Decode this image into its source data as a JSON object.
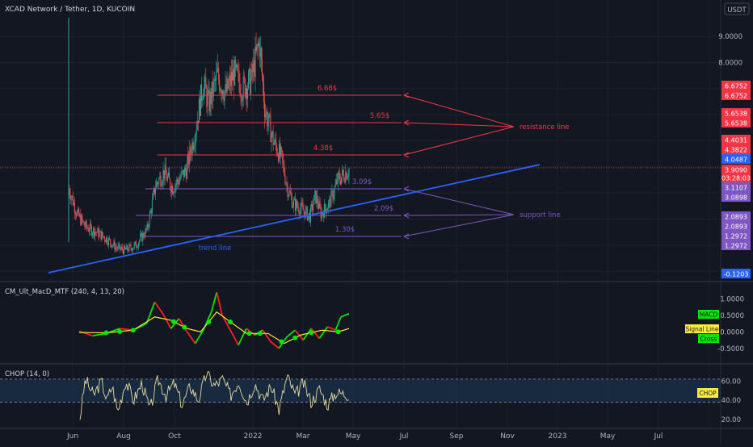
{
  "header": {
    "symbol_title": "XCAD Network / Tether, 1D, KUCOIN",
    "currency": "USDT"
  },
  "colors": {
    "background": "#131722",
    "grid": "#1e2230",
    "text": "#b2b5be",
    "candle_up": "#26a69a",
    "candle_down": "#ef5350",
    "resistance": "#f23645",
    "support": "#7e57c2",
    "trend": "#2962ff",
    "macd_up": "#00e600",
    "macd_down": "#ff1f1f",
    "signal": "#ffeb3b",
    "chop": "#e8d9a0"
  },
  "chart_data": [
    {
      "type": "candlestick",
      "title": "XCAD Network / Tether, 1D, KUCOIN",
      "x_ticks": [
        "Jun",
        "Aug",
        "Oct",
        "2022",
        "Mar",
        "May",
        "Jul",
        "Sep",
        "Nov",
        "2023",
        "May",
        "Jul"
      ],
      "y_ticks": [
        "9.0000",
        "8.0000",
        "-0.1203"
      ],
      "y_range_price": [
        -0.12,
        9.1
      ],
      "price_path": [
        [
          0,
          3.2
        ],
        [
          0.03,
          2.2
        ],
        [
          0.06,
          1.7
        ],
        [
          0.1,
          1.5
        ],
        [
          0.14,
          1.2
        ],
        [
          0.17,
          0.9
        ],
        [
          0.2,
          0.8
        ],
        [
          0.24,
          1.0
        ],
        [
          0.28,
          1.6
        ],
        [
          0.31,
          3.3
        ],
        [
          0.34,
          3.8
        ],
        [
          0.37,
          3.2
        ],
        [
          0.4,
          3.6
        ],
        [
          0.42,
          3.9
        ],
        [
          0.45,
          5.3
        ],
        [
          0.48,
          7.2
        ],
        [
          0.5,
          6.4
        ],
        [
          0.53,
          7.5
        ],
        [
          0.56,
          6.8
        ],
        [
          0.59,
          7.6
        ],
        [
          0.62,
          7.0
        ],
        [
          0.65,
          7.3
        ],
        [
          0.68,
          8.8
        ],
        [
          0.7,
          6.2
        ],
        [
          0.73,
          5.0
        ],
        [
          0.76,
          4.3
        ],
        [
          0.78,
          3.2
        ],
        [
          0.8,
          2.6
        ],
        [
          0.83,
          2.4
        ],
        [
          0.86,
          2.1
        ],
        [
          0.88,
          2.9
        ],
        [
          0.9,
          2.2
        ],
        [
          0.93,
          2.6
        ],
        [
          0.96,
          3.5
        ],
        [
          1,
          3.9
        ]
      ],
      "levels": [
        {
          "label": "6.68$",
          "value": 6.6752
        },
        {
          "label": "5.65$",
          "value": 5.6538
        },
        {
          "label": "4.38$",
          "value": 4.3822
        },
        {
          "label": "3.09$",
          "value": 3.0898
        },
        {
          "label": "2.09$",
          "value": 2.0893
        },
        {
          "label": "1.30$",
          "value": 1.2972
        }
      ],
      "annotations": {
        "resistance": "resistance line",
        "support": "support line",
        "trend": "trend line"
      },
      "price_labels": [
        {
          "text": "6.6752",
          "kind": "resistance"
        },
        {
          "text": "6.6752",
          "kind": "resistance"
        },
        {
          "text": "5.6538",
          "kind": "resistance"
        },
        {
          "text": "5.6538",
          "kind": "resistance"
        },
        {
          "text": "4.4031",
          "kind": "resistance"
        },
        {
          "text": "4.3822",
          "kind": "resistance"
        },
        {
          "text": "4.0487",
          "kind": "trend"
        },
        {
          "text": "3.9090",
          "kind": "last"
        },
        {
          "text": "03:28:03",
          "kind": "last"
        },
        {
          "text": "3.1107",
          "kind": "support"
        },
        {
          "text": "3.0898",
          "kind": "support"
        },
        {
          "text": "2.0893",
          "kind": "support"
        },
        {
          "text": "2.0893",
          "kind": "support"
        },
        {
          "text": "1.2972",
          "kind": "support"
        },
        {
          "text": "1.2972",
          "kind": "support"
        },
        {
          "text": "-0.1203",
          "kind": "trend"
        }
      ]
    },
    {
      "type": "line",
      "title": "CM_Ult_MacD_MTF (240, 4, 13, 20)",
      "y_ticks": [
        "1.0000",
        "0.5000",
        "0.0000",
        "-0.5000"
      ],
      "y_range": [
        -0.75,
        1.25
      ],
      "legend": [
        "MACD",
        "Signal Line",
        "Cross"
      ],
      "macd_path": [
        [
          0,
          0.02
        ],
        [
          0.05,
          -0.12
        ],
        [
          0.1,
          -0.05
        ],
        [
          0.15,
          0.1
        ],
        [
          0.2,
          0.05
        ],
        [
          0.25,
          0.25
        ],
        [
          0.28,
          0.9
        ],
        [
          0.31,
          0.55
        ],
        [
          0.34,
          0.1
        ],
        [
          0.37,
          0.4
        ],
        [
          0.4,
          0.0
        ],
        [
          0.43,
          -0.35
        ],
        [
          0.46,
          0.05
        ],
        [
          0.49,
          0.6
        ],
        [
          0.51,
          1.2
        ],
        [
          0.53,
          0.5
        ],
        [
          0.56,
          0.05
        ],
        [
          0.59,
          -0.4
        ],
        [
          0.62,
          0.1
        ],
        [
          0.65,
          -0.1
        ],
        [
          0.68,
          0.05
        ],
        [
          0.71,
          -0.3
        ],
        [
          0.74,
          -0.5
        ],
        [
          0.77,
          -0.15
        ],
        [
          0.8,
          0.05
        ],
        [
          0.83,
          -0.25
        ],
        [
          0.86,
          0.1
        ],
        [
          0.89,
          -0.2
        ],
        [
          0.92,
          0.15
        ],
        [
          0.95,
          0.05
        ],
        [
          0.97,
          0.45
        ],
        [
          1,
          0.55
        ]
      ],
      "signal_path": [
        [
          0,
          -0.02
        ],
        [
          0.1,
          -0.03
        ],
        [
          0.2,
          0.05
        ],
        [
          0.28,
          0.45
        ],
        [
          0.34,
          0.35
        ],
        [
          0.4,
          0.1
        ],
        [
          0.45,
          0.0
        ],
        [
          0.51,
          0.6
        ],
        [
          0.56,
          0.3
        ],
        [
          0.62,
          -0.05
        ],
        [
          0.7,
          -0.05
        ],
        [
          0.76,
          -0.35
        ],
        [
          0.82,
          -0.1
        ],
        [
          0.9,
          0.05
        ],
        [
          0.96,
          0.0
        ],
        [
          1,
          0.1
        ]
      ],
      "cross_points": [
        0.1,
        0.15,
        0.2,
        0.35,
        0.39,
        0.48,
        0.56,
        0.63,
        0.67,
        0.75,
        0.8,
        0.86,
        0.96
      ]
    },
    {
      "type": "line",
      "title": "CHOP (14, 0)",
      "y_ticks": [
        "60.00",
        "40.00",
        "20.00"
      ],
      "y_range": [
        15,
        72
      ],
      "legend": [
        "CHOP"
      ],
      "chop_path": [
        [
          0,
          22
        ],
        [
          0.02,
          62
        ],
        [
          0.05,
          45
        ],
        [
          0.08,
          60
        ],
        [
          0.1,
          40
        ],
        [
          0.12,
          55
        ],
        [
          0.14,
          28
        ],
        [
          0.17,
          60
        ],
        [
          0.2,
          40
        ],
        [
          0.23,
          58
        ],
        [
          0.26,
          30
        ],
        [
          0.29,
          62
        ],
        [
          0.32,
          45
        ],
        [
          0.35,
          58
        ],
        [
          0.38,
          35
        ],
        [
          0.41,
          55
        ],
        [
          0.44,
          40
        ],
        [
          0.47,
          68
        ],
        [
          0.5,
          55
        ],
        [
          0.53,
          62
        ],
        [
          0.56,
          45
        ],
        [
          0.59,
          60
        ],
        [
          0.62,
          38
        ],
        [
          0.65,
          58
        ],
        [
          0.68,
          40
        ],
        [
          0.71,
          55
        ],
        [
          0.74,
          30
        ],
        [
          0.77,
          65
        ],
        [
          0.8,
          45
        ],
        [
          0.83,
          58
        ],
        [
          0.86,
          38
        ],
        [
          0.89,
          52
        ],
        [
          0.92,
          35
        ],
        [
          0.95,
          48
        ],
        [
          1,
          46
        ]
      ],
      "band": [
        38,
        62
      ]
    }
  ]
}
